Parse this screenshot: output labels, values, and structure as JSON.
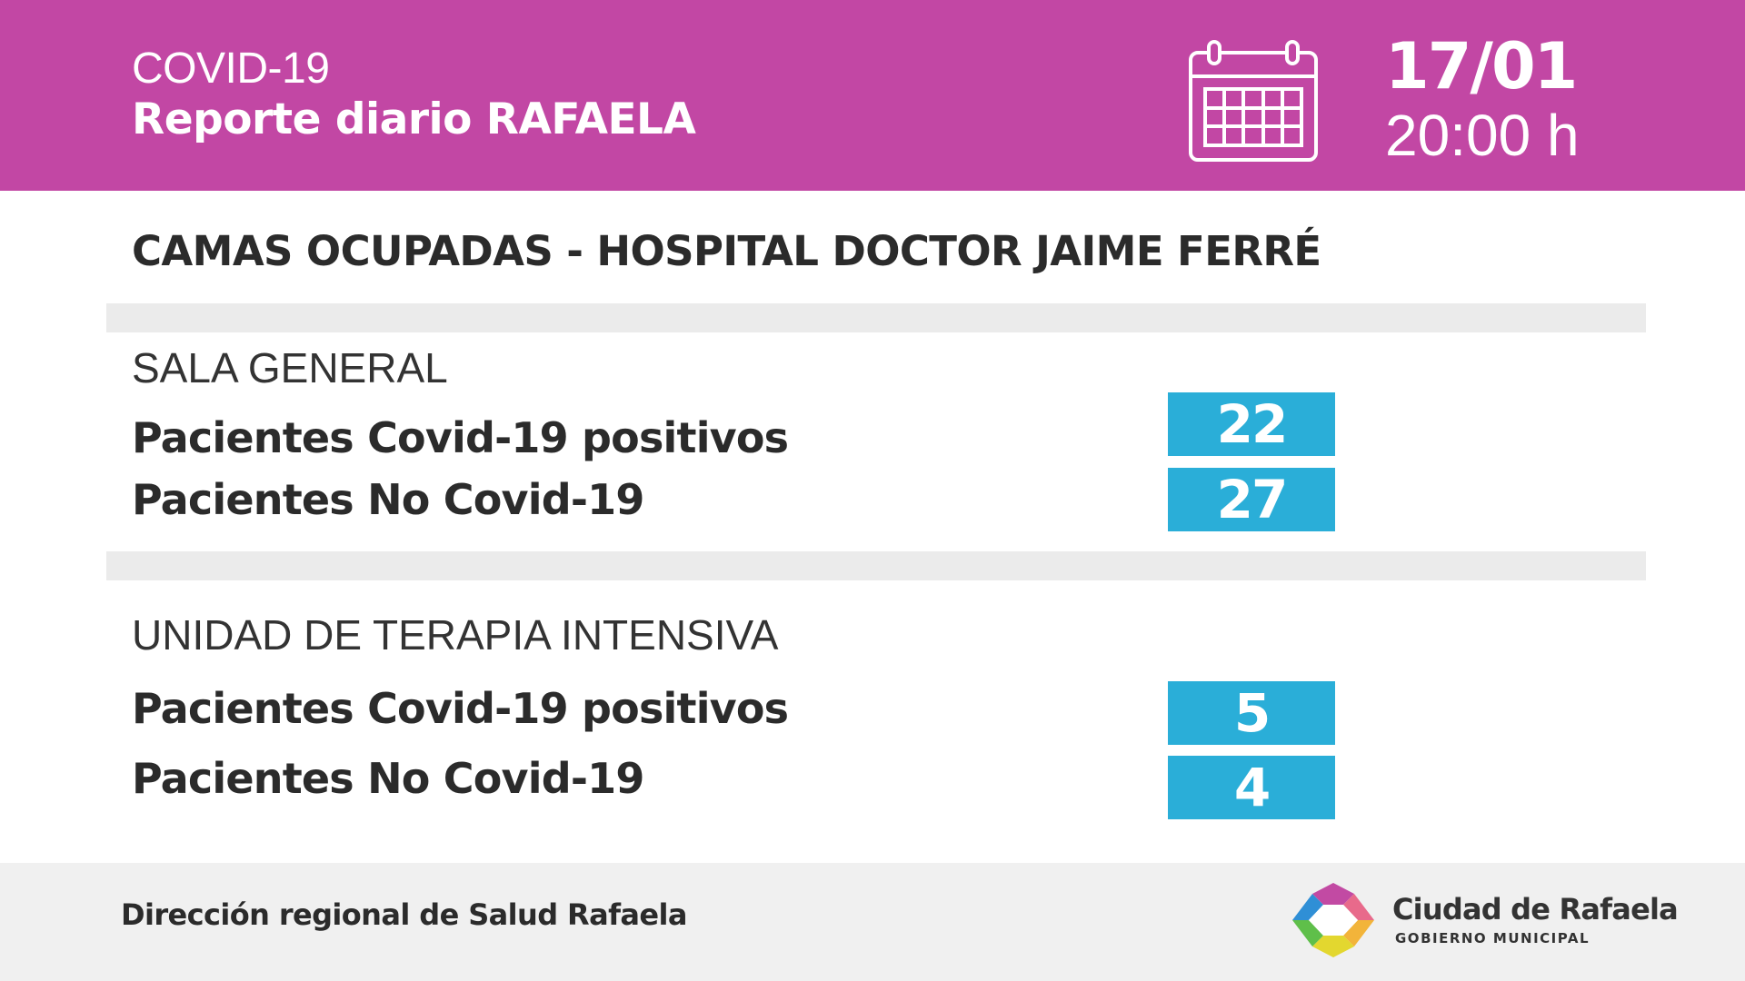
{
  "header": {
    "topic": "COVID-19",
    "title": "Reporte diario RAFAELA",
    "date": "17/01",
    "time": "20:00 h",
    "calendar_icon": "calendar-icon",
    "color": "#c247a4"
  },
  "main": {
    "heading": "CAMAS OCUPADAS - HOSPITAL DOCTOR JAIME FERRÉ",
    "sections": [
      {
        "title": "SALA GENERAL",
        "rows": [
          {
            "label": "Pacientes Covid-19 positivos",
            "value": "22"
          },
          {
            "label": "Pacientes No Covid-19",
            "value": "27"
          }
        ]
      },
      {
        "title": "UNIDAD DE TERAPIA INTENSIVA",
        "rows": [
          {
            "label": "Pacientes Covid-19 positivos",
            "value": "5"
          },
          {
            "label": "Pacientes No Covid-19",
            "value": "4"
          }
        ]
      }
    ],
    "value_color": "#2aaed8"
  },
  "footer": {
    "source": "Dirección regional de Salud Rafaela",
    "org_name": "Ciudad de Rafaela",
    "org_subtitle": "GOBIERNO MUNICIPAL",
    "logo_icon": "ciudad-de-rafaela-logo-icon"
  }
}
